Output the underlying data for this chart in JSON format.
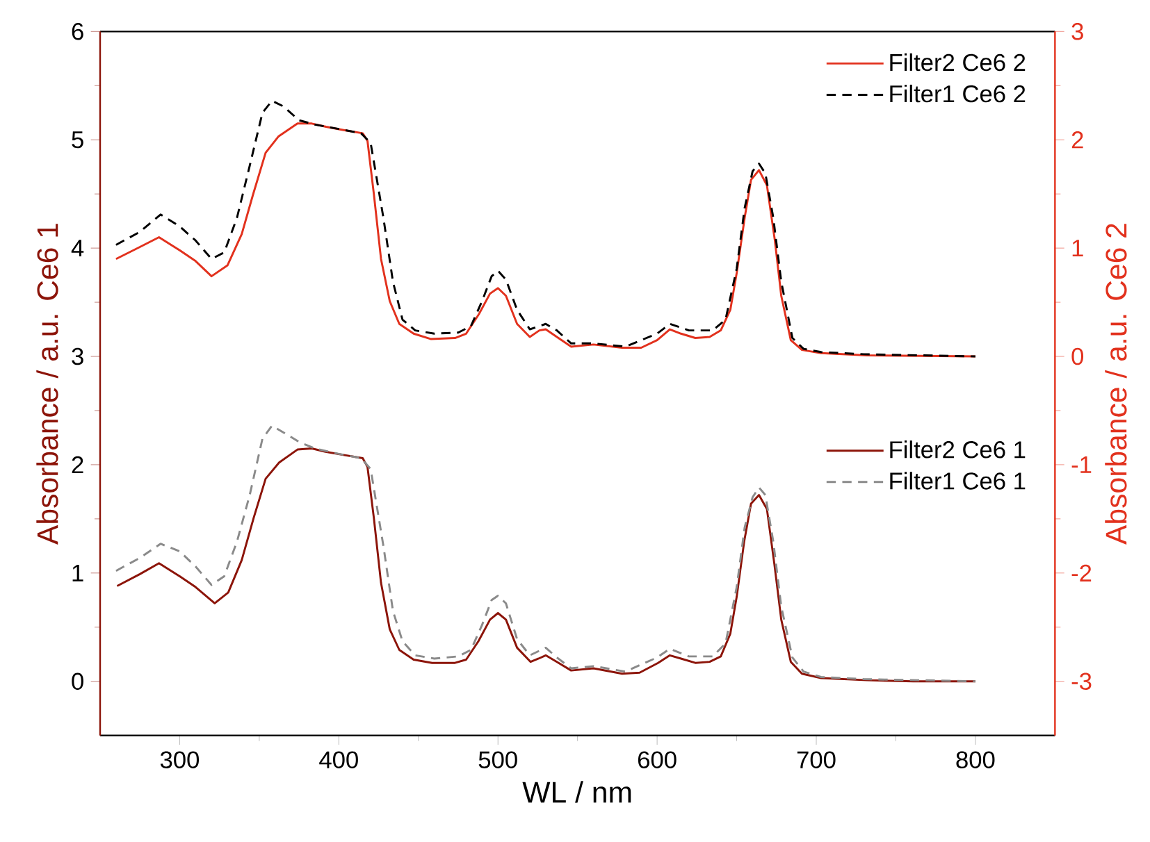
{
  "chart_data": {
    "type": "line",
    "xlabel": "WL / nm",
    "ylabel": "Absorbance / a.u. Ce6 1",
    "y2label": "Absorbance / a.u. Ce6 2",
    "xlim": [
      250,
      850
    ],
    "xticks": [
      300,
      400,
      500,
      600,
      700,
      800
    ],
    "ylim": [
      -0.5,
      6
    ],
    "yticks": [
      0,
      1,
      2,
      3,
      4,
      5,
      6
    ],
    "y2lim": [
      -3.5,
      3
    ],
    "y2ticks": [
      -3,
      -2,
      -1,
      0,
      1,
      2,
      3
    ],
    "legend": "top right",
    "marker": "none",
    "series": [
      {
        "name": "Filter2 Ce6 2",
        "color": "#e2311d",
        "axis": "y2",
        "line_style": "solid",
        "x": [
          260,
          275,
          287,
          300,
          310,
          320,
          330,
          339,
          346,
          354,
          362,
          374,
          383,
          392,
          403,
          415,
          418,
          422,
          426.5,
          432,
          438,
          447,
          458,
          473,
          480,
          488,
          495,
          500,
          505,
          512,
          520,
          526,
          530,
          537,
          546,
          560,
          578,
          590,
          600,
          608,
          615,
          624,
          633,
          640,
          646,
          650,
          655,
          659,
          664,
          669,
          674,
          678,
          684,
          691,
          703,
          732,
          800
        ],
        "values": [
          0.9,
          1.01,
          1.1,
          0.98,
          0.88,
          0.74,
          0.84,
          1.13,
          1.49,
          1.88,
          2.03,
          2.15,
          2.15,
          2.12,
          2.09,
          2.06,
          1.99,
          1.5,
          0.9,
          0.51,
          0.3,
          0.21,
          0.16,
          0.17,
          0.21,
          0.39,
          0.58,
          0.63,
          0.56,
          0.3,
          0.18,
          0.24,
          0.25,
          0.18,
          0.09,
          0.11,
          0.08,
          0.08,
          0.15,
          0.25,
          0.21,
          0.17,
          0.18,
          0.24,
          0.43,
          0.77,
          1.28,
          1.63,
          1.72,
          1.58,
          1.07,
          0.56,
          0.15,
          0.06,
          0.03,
          0.01,
          0.0
        ]
      },
      {
        "name": "Filter1 Ce6 2",
        "color": "#000000",
        "axis": "y2",
        "line_style": "dashed",
        "x": [
          260,
          275,
          288,
          300,
          310,
          320,
          328,
          336,
          344,
          352,
          358,
          365,
          375,
          385,
          400,
          414,
          420,
          428,
          434,
          440,
          448,
          460,
          475,
          483,
          490,
          496,
          500,
          505,
          512,
          520,
          530,
          537,
          546,
          560,
          580,
          600,
          608,
          620,
          635,
          643,
          650,
          655,
          660,
          664,
          668,
          673,
          678,
          685,
          692,
          703,
          730,
          800
        ],
        "values": [
          1.03,
          1.15,
          1.31,
          1.2,
          1.07,
          0.9,
          0.96,
          1.28,
          1.76,
          2.25,
          2.36,
          2.31,
          2.18,
          2.14,
          2.1,
          2.06,
          1.97,
          1.28,
          0.69,
          0.34,
          0.24,
          0.21,
          0.22,
          0.28,
          0.51,
          0.74,
          0.79,
          0.71,
          0.43,
          0.25,
          0.3,
          0.24,
          0.12,
          0.12,
          0.09,
          0.21,
          0.3,
          0.24,
          0.24,
          0.34,
          0.81,
          1.37,
          1.71,
          1.78,
          1.69,
          1.28,
          0.69,
          0.17,
          0.07,
          0.04,
          0.02,
          0.0
        ]
      },
      {
        "name": "Filter2 Ce6 1",
        "color": "#8c1409",
        "line_style": "solid",
        "x": [
          260.7,
          275,
          287,
          300,
          310,
          322,
          330.5,
          339,
          346.5,
          354,
          362.5,
          374,
          383,
          391.6,
          403,
          415,
          418,
          422,
          426.5,
          432,
          438,
          447,
          458.6,
          473,
          480,
          487.7,
          495,
          500,
          505,
          512,
          520.5,
          525.5,
          530,
          537,
          546,
          560,
          578,
          589,
          600.6,
          608,
          615,
          624,
          633,
          640,
          646,
          650,
          654.7,
          659,
          664,
          669,
          673.7,
          678,
          684,
          691,
          703,
          732,
          761,
          800
        ],
        "values": [
          0.88,
          0.99,
          1.09,
          0.97,
          0.87,
          0.72,
          0.82,
          1.12,
          1.51,
          1.87,
          2.02,
          2.14,
          2.15,
          2.12,
          2.09,
          2.06,
          1.98,
          1.51,
          0.91,
          0.48,
          0.29,
          0.2,
          0.17,
          0.17,
          0.2,
          0.37,
          0.57,
          0.63,
          0.57,
          0.31,
          0.18,
          0.21,
          0.24,
          0.18,
          0.1,
          0.12,
          0.07,
          0.08,
          0.17,
          0.24,
          0.21,
          0.17,
          0.18,
          0.23,
          0.44,
          0.78,
          1.29,
          1.64,
          1.72,
          1.59,
          1.08,
          0.57,
          0.18,
          0.07,
          0.03,
          0.01,
          0.0,
          0.0
        ]
      },
      {
        "name": "Filter1 Ce6 1",
        "color": "#8a8a8a",
        "line_style": "dashed",
        "x": [
          260,
          275,
          288,
          300,
          310,
          320,
          328,
          336,
          344,
          352,
          358,
          365,
          375,
          385,
          400,
          414,
          420,
          428,
          434,
          440,
          448,
          460,
          475,
          483,
          490,
          496,
          500,
          505,
          512,
          520,
          530,
          537,
          546,
          560,
          580,
          600,
          608,
          620,
          635,
          643,
          650,
          655,
          660,
          664,
          668,
          673,
          678,
          685,
          692,
          703,
          730,
          800
        ],
        "values": [
          1.02,
          1.14,
          1.27,
          1.2,
          1.06,
          0.89,
          0.97,
          1.29,
          1.72,
          2.24,
          2.36,
          2.3,
          2.21,
          2.15,
          2.1,
          2.06,
          1.96,
          1.25,
          0.65,
          0.37,
          0.24,
          0.21,
          0.23,
          0.29,
          0.52,
          0.75,
          0.79,
          0.72,
          0.39,
          0.24,
          0.31,
          0.22,
          0.12,
          0.14,
          0.09,
          0.22,
          0.3,
          0.23,
          0.23,
          0.35,
          0.87,
          1.42,
          1.7,
          1.79,
          1.72,
          1.29,
          0.69,
          0.22,
          0.09,
          0.04,
          0.02,
          0.0
        ]
      }
    ]
  }
}
